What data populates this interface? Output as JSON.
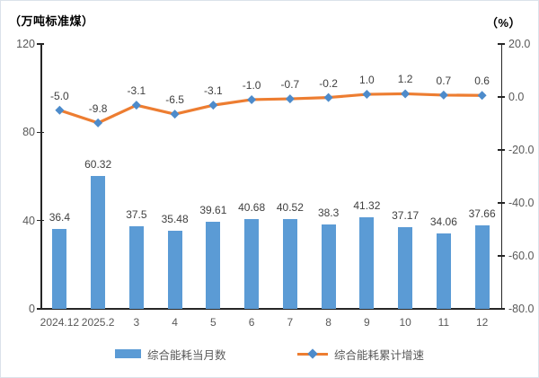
{
  "chart_data": {
    "type": "combo-bar-line",
    "categories": [
      "2024.12",
      "2025.2",
      "3",
      "4",
      "5",
      "6",
      "7",
      "8",
      "9",
      "10",
      "11",
      "12"
    ],
    "series": [
      {
        "name": "综合能耗当月数",
        "type": "bar",
        "axis": "left",
        "color": "#5B9BD5",
        "values": [
          36.4,
          60.32,
          37.5,
          35.48,
          39.61,
          40.68,
          40.52,
          38.3,
          41.32,
          37.17,
          34.06,
          37.66
        ],
        "labels": [
          "36.4",
          "60.32",
          "37.5",
          "35.48",
          "39.61",
          "40.68",
          "40.52",
          "38.3",
          "41.32",
          "37.17",
          "34.06",
          "37.66"
        ]
      },
      {
        "name": "综合能耗累计增速",
        "type": "line",
        "axis": "right",
        "color": "#ED7D31",
        "marker_color": "#4D8BCB",
        "marker_shape": "diamond",
        "values": [
          -5.0,
          -9.8,
          -3.1,
          -6.5,
          -3.1,
          -1.0,
          -0.7,
          -0.2,
          1.0,
          1.2,
          0.7,
          0.6
        ],
        "labels": [
          "-5.0",
          "-9.8",
          "-3.1",
          "-6.5",
          "-3.1",
          "-1.0",
          "-0.7",
          "-0.2",
          "1.0",
          "1.2",
          "0.7",
          "0.6"
        ]
      }
    ],
    "left_axis": {
      "title": "（万吨标准煤）",
      "min": 0,
      "max": 120,
      "tick_values": [
        0,
        40,
        80,
        120
      ],
      "tick_labels": [
        "0",
        "40",
        "80",
        "120"
      ]
    },
    "right_axis": {
      "title": "（%）",
      "min": -80,
      "max": 20,
      "tick_values": [
        20,
        0,
        -20,
        -40,
        -60,
        -80
      ],
      "tick_labels": [
        "20.0",
        "0.0",
        "-20.0",
        "-40.0",
        "-60.0",
        "-80.0"
      ]
    },
    "grid": "off",
    "legend_position": "bottom",
    "title": ""
  }
}
